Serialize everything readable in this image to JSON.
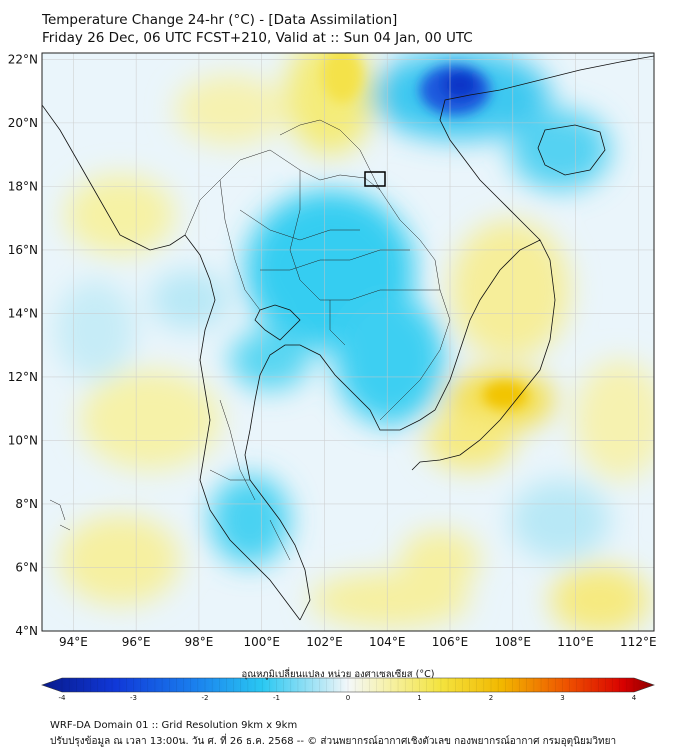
{
  "header": {
    "title_line1": "Temperature Change 24-hr (°C) - [Data Assimilation]",
    "title_line2": "Friday 26 Dec, 06 UTC FCST+210, Valid at :: Sun 04 Jan, 00 UTC"
  },
  "map": {
    "lon_range": [
      93,
      112.5
    ],
    "lat_range": [
      4,
      22.2
    ],
    "lat_labels": [
      "22°N",
      "20°N",
      "18°N",
      "16°N",
      "14°N",
      "12°N",
      "10°N",
      "8°N",
      "6°N",
      "4°N"
    ],
    "lat_values": [
      22,
      20,
      18,
      16,
      14,
      12,
      10,
      8,
      6,
      4
    ],
    "lon_labels": [
      "94°E",
      "96°E",
      "98°E",
      "100°E",
      "102°E",
      "104°E",
      "106°E",
      "108°E",
      "110°E",
      "112°E"
    ],
    "lon_values": [
      94,
      96,
      98,
      100,
      102,
      104,
      106,
      108,
      110,
      112
    ]
  },
  "colorbar": {
    "label": "อุณหภูมิเปลี่ยนแปลง หน่วย องศาเซลเซียส (°C)",
    "range": [
      -4,
      4
    ],
    "tick_labels": [
      "-4",
      "-3",
      "-2",
      "-1",
      "0",
      "1",
      "2",
      "3",
      "4"
    ],
    "tick_values": [
      -4,
      -3,
      -2,
      -1,
      0,
      1,
      2,
      3,
      4
    ]
  },
  "footer": {
    "line1": "WRF-DA Domain 01 :: Grid Resolution 9km x 9km",
    "line2": "ปรับปรุงข้อมูล ณ เวลา 13:00น. วัน ศ. ที่ 26 ธ.ค. 2568 -- © ส่วนพยากรณ์อากาศเชิงตัวเลข กองพยากรณ์อากาศ กรมอุตุนิยมวิทยา"
  },
  "colors": {
    "cold_strong": "#1040d8",
    "cold": "#28c8f0",
    "neutral": "#e8f4fb",
    "warm": "#f5ee8a",
    "warm_strong": "#f2d000"
  }
}
